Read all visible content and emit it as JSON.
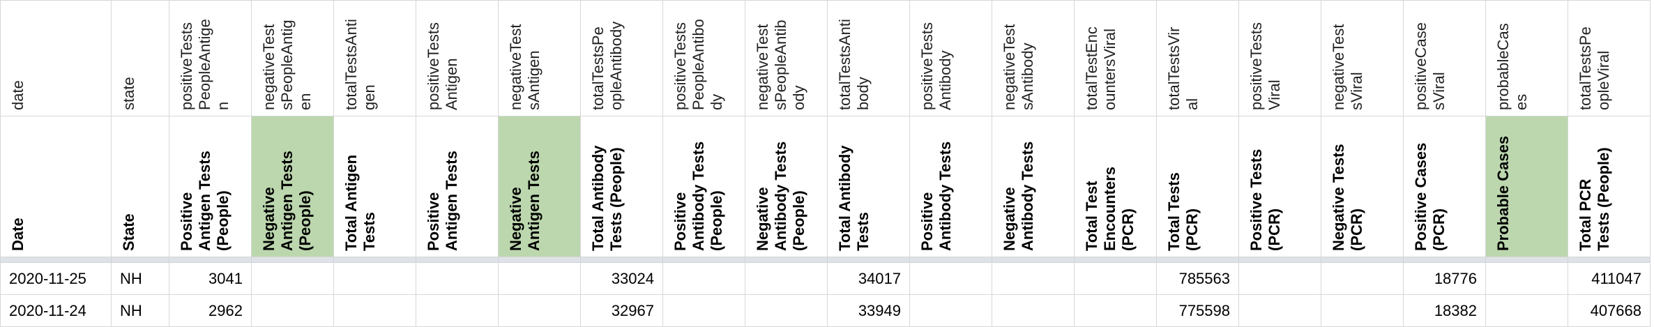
{
  "columns": [
    {
      "raw": "date",
      "label": "Date"
    },
    {
      "raw": "state",
      "label": "State"
    },
    {
      "raw": "positiveTests\nPeopleAntige\nn",
      "label": "Positive\nAntigen Tests\n(People)"
    },
    {
      "raw": "negativeTest\nsPeopleAntig\nen",
      "label": "Negative\nAntigen Tests\n(People)"
    },
    {
      "raw": "totalTestsAnti\ngen",
      "label": "Total Antigen\nTests"
    },
    {
      "raw": "positiveTests\nAntigen",
      "label": "Positive\nAntigen Tests"
    },
    {
      "raw": "negativeTest\nsAntigen",
      "label": "Negative\nAntigen Tests"
    },
    {
      "raw": "totalTestsPe\nopleAntibody",
      "label": "Total Antibody\nTests (People)"
    },
    {
      "raw": "positiveTests\nPeopleAntibo\ndy",
      "label": "Positive\nAntibody Tests\n(People)"
    },
    {
      "raw": "negativeTest\nsPeopleAntib\nody",
      "label": "Negative\nAntibody Tests\n(People)"
    },
    {
      "raw": "totalTestsAnti\nbody",
      "label": "Total Antibody\nTests"
    },
    {
      "raw": "positiveTests\nAntibody",
      "label": "Positive\nAntibody Tests"
    },
    {
      "raw": "negativeTest\nsAntibody",
      "label": "Negative\nAntibody Tests"
    },
    {
      "raw": "totalTestEnc\nountersViral",
      "label": "Total Test\nEncounters\n(PCR)"
    },
    {
      "raw": "totalTestsVir\nal",
      "label": "Total Tests\n(PCR)"
    },
    {
      "raw": "positiveTests\nViral",
      "label": "Positive Tests\n(PCR)"
    },
    {
      "raw": "negativeTest\nsViral",
      "label": "Negative Tests\n(PCR)"
    },
    {
      "raw": "positiveCase\nsViral",
      "label": "Positive Cases\n(PCR)"
    },
    {
      "raw": "probableCas\nes",
      "label": "Probable Cases"
    },
    {
      "raw": "totalTestsPe\nopleViral",
      "label": "Total PCR\nTests (People)"
    }
  ],
  "rows": [
    [
      "2020-11-25",
      "NH",
      "3041",
      "",
      "",
      "",
      "",
      "33024",
      "",
      "",
      "34017",
      "",
      "",
      "",
      "785563",
      "",
      "",
      "18776",
      "",
      "411047"
    ],
    [
      "2020-11-24",
      "NH",
      "2962",
      "",
      "",
      "",
      "",
      "32967",
      "",
      "",
      "33949",
      "",
      "",
      "",
      "775598",
      "",
      "",
      "18382",
      "",
      "407668"
    ]
  ],
  "highlight_color": "#bcd7ae"
}
